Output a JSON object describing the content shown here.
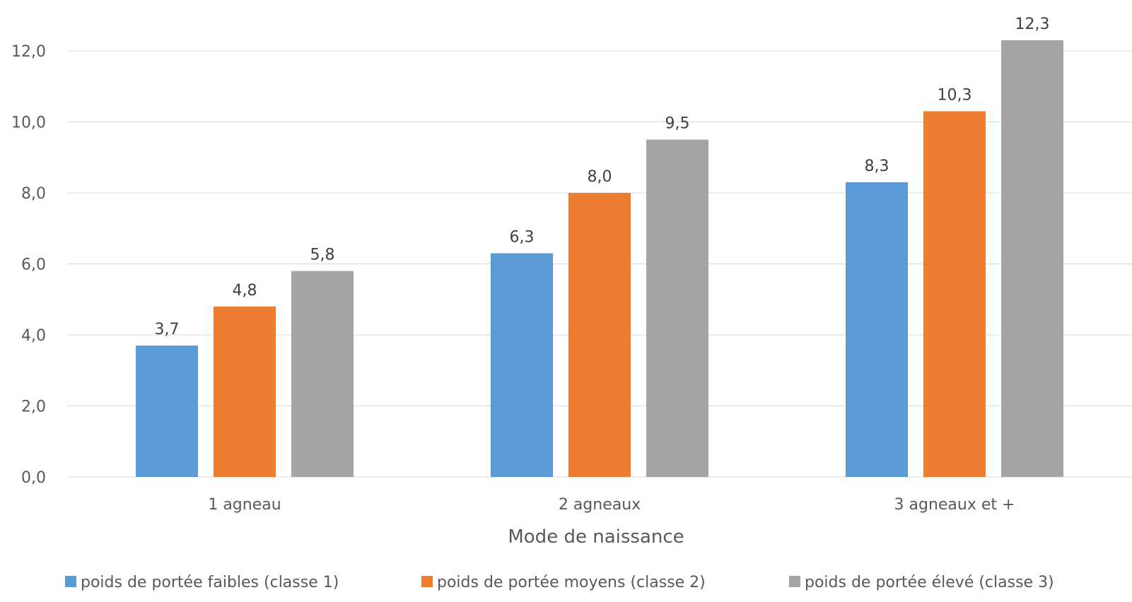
{
  "chart_data": {
    "type": "bar",
    "title": "",
    "xlabel": "Mode de naissance",
    "ylabel": "",
    "ylim": [
      0,
      12
    ],
    "yticks": [
      "0,0",
      "2,0",
      "4,0",
      "6,0",
      "8,0",
      "10,0",
      "12,0"
    ],
    "grid": true,
    "legend_position": "bottom",
    "categories": [
      "1 agneau",
      "2 agneaux",
      "3 agneaux et +"
    ],
    "series": [
      {
        "name": "poids de portée faibles (classe 1)",
        "color": "#5b9bd5",
        "values": [
          3.7,
          6.3,
          8.3
        ],
        "labels": [
          "3,7",
          "6,3",
          "8,3"
        ]
      },
      {
        "name": "poids de portée moyens (classe 2)",
        "color": "#ed7d31",
        "values": [
          4.8,
          8.0,
          10.3
        ],
        "labels": [
          "4,8",
          "8,0",
          "10,3"
        ]
      },
      {
        "name": "poids de portée élevé (classe 3)",
        "color": "#a5a5a5",
        "values": [
          5.8,
          9.5,
          12.3
        ],
        "labels": [
          "5,8",
          "9,5",
          "12,3"
        ]
      }
    ]
  }
}
